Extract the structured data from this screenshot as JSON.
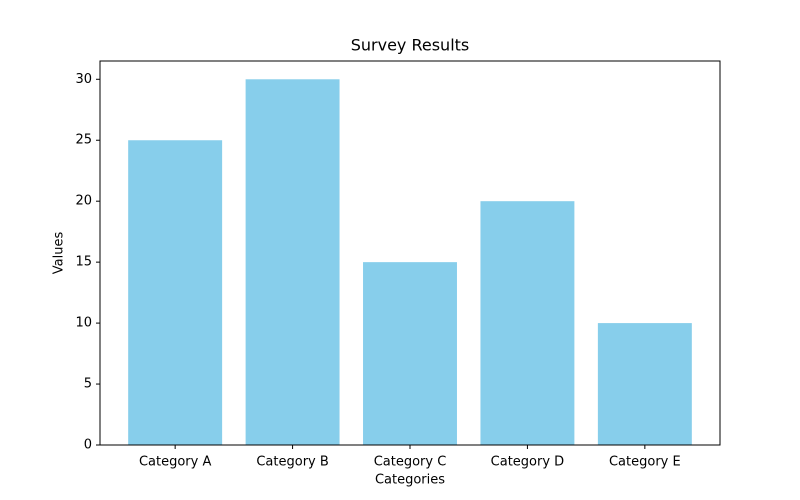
{
  "chart_data": {
    "type": "bar",
    "title": "Survey Results",
    "x_label": "Categories",
    "y_label": "Values",
    "categories": [
      "Category A",
      "Category B",
      "Category C",
      "Category D",
      "Category E"
    ],
    "values": [
      25,
      30,
      15,
      20,
      10
    ],
    "color": "#87ceeb",
    "ylim": [
      0,
      31.5
    ],
    "yticks": [
      0,
      5,
      10,
      15,
      20,
      25,
      30
    ],
    "grid": false
  }
}
